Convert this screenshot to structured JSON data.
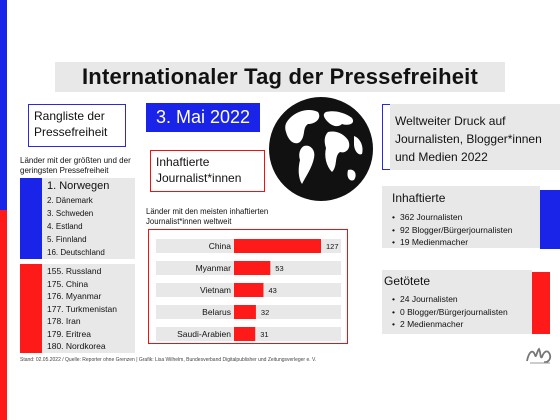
{
  "title": "Internationaler Tag der Pressefreiheit",
  "date": "3. Mai 2022",
  "ranking": {
    "heading": "Rangliste der Pressefreiheit",
    "subtitle": "Länder mit der größten und der geringsten Pressefreiheit",
    "best": [
      "1. Norwegen",
      "2. Dänemark",
      "3. Schweden",
      "4. Estland",
      "5. Finnland",
      "16. Deutschland"
    ],
    "worst": [
      "155. Russland",
      "175. China",
      "176. Myanmar",
      "177. Turkmenistan",
      "178. Iran",
      "179. Eritrea",
      "180. Nordkorea"
    ]
  },
  "jailed": {
    "heading": "Inhaftierte Journalist*innen",
    "chart_subtitle": "Länder mit den meisten inhaftierten Journalist*innen weltweit"
  },
  "chart_data": {
    "type": "bar",
    "orientation": "horizontal",
    "categories": [
      "China",
      "Myanmar",
      "Vietnam",
      "Belarus",
      "Saudi-Arabien"
    ],
    "values": [
      127,
      53,
      43,
      32,
      31
    ],
    "bar_color": "#ff1a1a",
    "title": "",
    "xlabel": "",
    "ylabel": "",
    "xlim": [
      0,
      127
    ],
    "grid": false,
    "legend": "none"
  },
  "world": {
    "heading": "Weltweiter Druck auf Journalisten, Blogger*innen und Medien 2022",
    "inhaftierte_heading": "Inhaftierte",
    "inhaftierte_items": [
      "362 Journalisten",
      "92 Blogger/Bürgerjournalisten",
      "19 Medienmacher"
    ],
    "getoetete_heading": "Getötete",
    "getoetete_items": [
      "24 Journalisten",
      "0 Blogger/Bürgerjournalisten",
      "2 Medienmacher"
    ]
  },
  "footer": "Stand: 02.05.2022  /  Quelle: Reporter ohne Grenzen  |  Grafik: Lisa Wilhelm, Bundesverband Digitalpublisher und Zeitungsverleger e. V.",
  "colors": {
    "accent_blue": "#1a24e8",
    "accent_red": "#ff1a1a",
    "panel_gray": "#e8e8e8"
  },
  "icons": {
    "globe": "globe-icon",
    "logo": "publisher-logo-icon"
  }
}
